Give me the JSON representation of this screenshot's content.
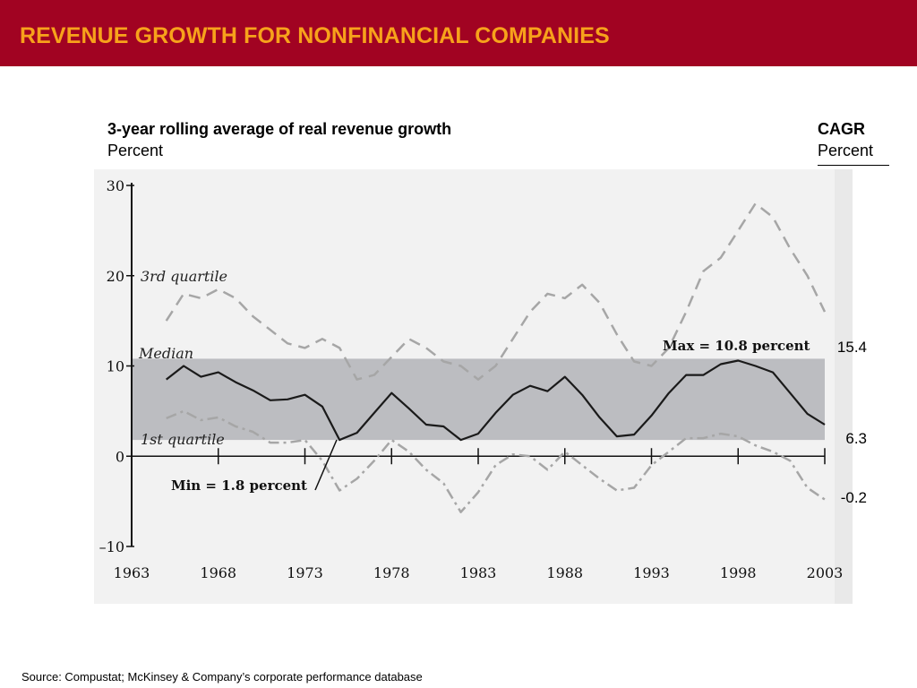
{
  "header": {
    "title": "REVENUE GROWTH FOR NONFINANCIAL COMPANIES"
  },
  "chart_title": "3-year rolling average of real revenue growth",
  "chart_subtitle": "Percent",
  "cagr": {
    "title": "CAGR",
    "subtitle": "Percent",
    "values": [
      "15.4",
      "6.3",
      "-0.2"
    ]
  },
  "source": "Source: Compustat; McKinsey & Company’s corporate performance database",
  "colors": {
    "header_bg": "#a10322",
    "header_text": "#f7a21b",
    "band": "#bcbdc1",
    "plot_bg": "#f2f2f2",
    "line": "#1a1a1a",
    "dashed": "#a6a6a6"
  },
  "chart_data": {
    "type": "line",
    "title": "3-year rolling average of real revenue growth",
    "ylabel": "Percent",
    "xlabel": "",
    "xlim": [
      1963,
      2003
    ],
    "ylim": [
      -10,
      30
    ],
    "x_ticks": [
      "1963",
      "1968",
      "1973",
      "1978",
      "1983",
      "1988",
      "1993",
      "1998",
      "2003"
    ],
    "y_ticks": [
      "30",
      "20",
      "10",
      "0",
      "–10"
    ],
    "x": [
      1965,
      1966,
      1967,
      1968,
      1969,
      1970,
      1971,
      1972,
      1973,
      1974,
      1975,
      1976,
      1977,
      1978,
      1979,
      1980,
      1981,
      1982,
      1983,
      1984,
      1985,
      1986,
      1987,
      1988,
      1989,
      1990,
      1991,
      1992,
      1993,
      1994,
      1995,
      1996,
      1997,
      1998,
      1999,
      2000,
      2001,
      2002,
      2003
    ],
    "series": [
      {
        "name": "3rd quartile",
        "style": "dashed",
        "values": [
          15.0,
          18.0,
          17.5,
          18.5,
          17.5,
          15.5,
          14.0,
          12.5,
          12.0,
          13.0,
          12.0,
          8.5,
          9.0,
          11.0,
          13.0,
          12.0,
          10.5,
          10.0,
          8.5,
          10.0,
          13.0,
          16.0,
          18.0,
          17.5,
          19.0,
          17.0,
          13.5,
          10.5,
          10.0,
          12.0,
          16.0,
          20.5,
          22.0,
          25.0,
          28.0,
          26.5,
          23.0,
          20.0,
          16.0
        ]
      },
      {
        "name": "Median",
        "style": "solid",
        "values": [
          8.5,
          10.0,
          8.8,
          9.3,
          8.2,
          7.3,
          6.2,
          6.3,
          6.8,
          5.5,
          1.8,
          2.6,
          4.8,
          7.0,
          5.3,
          3.5,
          3.3,
          1.8,
          2.5,
          4.8,
          6.8,
          7.8,
          7.2,
          8.8,
          6.8,
          4.3,
          2.2,
          2.4,
          4.5,
          7.0,
          9.0,
          9.0,
          10.2,
          10.6,
          10.0,
          9.3,
          7.0,
          4.7,
          3.5
        ]
      },
      {
        "name": "1st quartile",
        "style": "dash-dot",
        "values": [
          4.2,
          5.0,
          4.0,
          4.3,
          3.3,
          2.7,
          1.5,
          1.5,
          1.8,
          -0.5,
          -3.8,
          -2.5,
          -0.5,
          1.8,
          0.5,
          -1.5,
          -3.0,
          -6.2,
          -4.0,
          -1.0,
          0.2,
          0.0,
          -1.5,
          0.5,
          -1.0,
          -2.5,
          -3.8,
          -3.5,
          -1.0,
          0.5,
          2.0,
          2.0,
          2.5,
          2.2,
          1.2,
          0.5,
          -0.5,
          -3.5,
          -4.8
        ]
      }
    ],
    "band": {
      "from": 1.8,
      "to": 10.8
    },
    "annotations": [
      "Max = 10.8 percent",
      "Min = 1.8 percent",
      "3rd quartile",
      "Median",
      "1st quartile"
    ]
  }
}
